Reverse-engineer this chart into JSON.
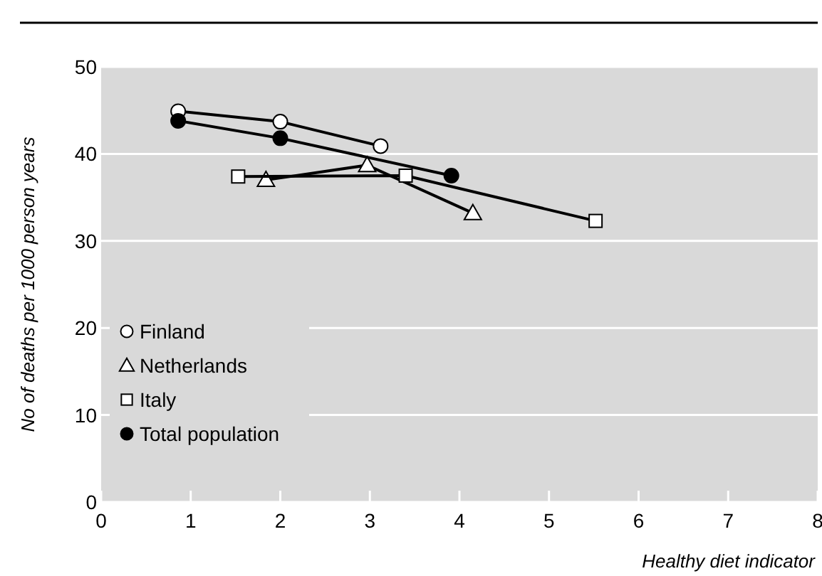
{
  "chart_data": {
    "type": "line",
    "xlabel": "Healthy diet indicator",
    "ylabel": "No of deaths per 1000 person years",
    "xlim": [
      0,
      8
    ],
    "xticks": [
      0,
      1,
      2,
      3,
      4,
      5,
      6,
      7,
      8
    ],
    "ylim": [
      0,
      50
    ],
    "yticks": [
      0,
      10,
      20,
      30,
      40,
      50
    ],
    "grid": "y",
    "legend": "bottom left",
    "line_style": "solid",
    "series": [
      {
        "name": "Finland",
        "color": "#ffffff",
        "marker": "circle",
        "x": [
          0.86,
          2.0,
          3.12
        ],
        "values": [
          44.9,
          43.7,
          40.9
        ]
      },
      {
        "name": "Netherlands",
        "color": "#ffffff",
        "marker": "triangle",
        "x": [
          1.84,
          2.97,
          4.15
        ],
        "values": [
          37.0,
          38.7,
          33.2
        ]
      },
      {
        "name": "Italy",
        "color": "#ffffff",
        "marker": "square",
        "x": [
          1.53,
          3.4,
          5.52
        ],
        "values": [
          37.4,
          37.5,
          32.3
        ]
      },
      {
        "name": "Total population",
        "color": "#000000",
        "marker": "circle",
        "x": [
          0.86,
          2.0,
          3.91
        ],
        "values": [
          43.8,
          41.8,
          37.5
        ]
      }
    ]
  }
}
